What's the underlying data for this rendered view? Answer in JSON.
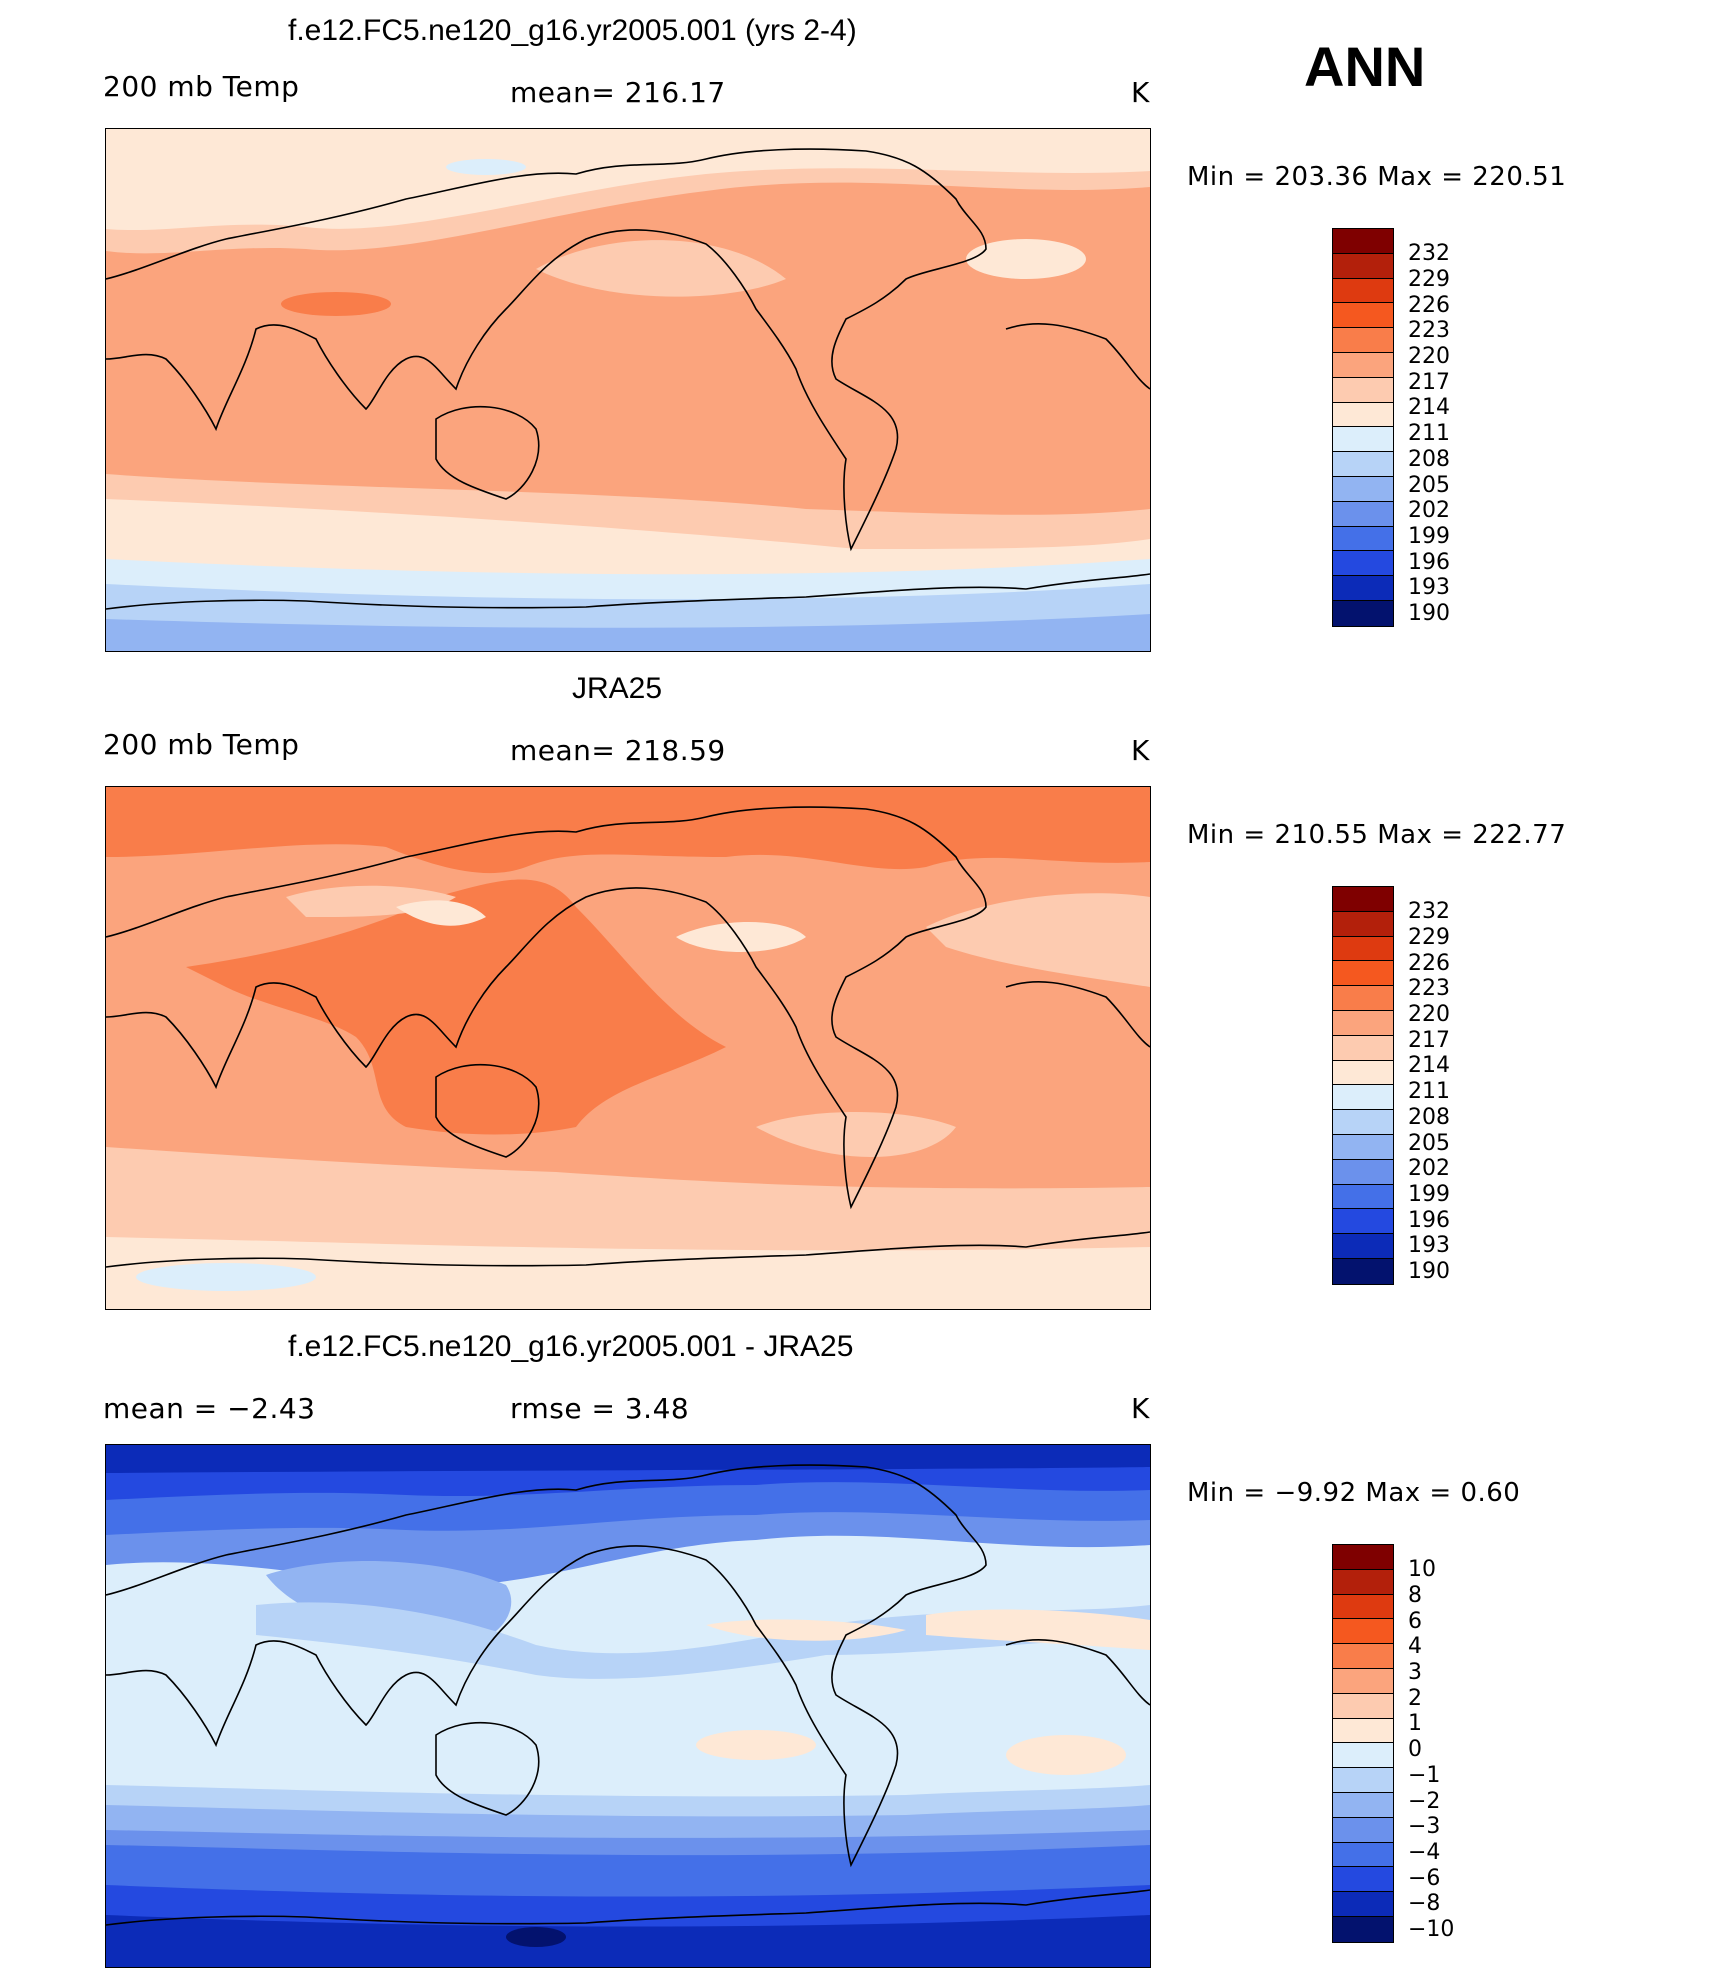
{
  "season": "ANN",
  "panels": [
    {
      "title": "f.e12.FC5.ne120_g16.yr2005.001 (yrs 2-4)",
      "left_label": "200 mb Temp",
      "center_label": "mean= 216.17",
      "units": "K",
      "minmax": "Min = 203.36 Max = 220.51"
    },
    {
      "title": "JRA25",
      "left_label": "200 mb Temp",
      "center_label": "mean= 218.59",
      "units": "K",
      "minmax": "Min = 210.55 Max = 222.77"
    },
    {
      "title": "f.e12.FC5.ne120_g16.yr2005.001 - JRA25",
      "left_label": "mean =   −2.43",
      "center_label": "rmse =    3.48",
      "units": "K",
      "minmax": "Min =  −9.92 Max =    0.60"
    }
  ],
  "colorbars": {
    "abs": {
      "labels": [
        "232",
        "229",
        "226",
        "223",
        "220",
        "217",
        "214",
        "211",
        "208",
        "205",
        "202",
        "199",
        "196",
        "193",
        "190"
      ],
      "colors": [
        "#7f0000",
        "#b3200b",
        "#de3a10",
        "#f5581f",
        "#f97d4a",
        "#fba47d",
        "#fdcbb0",
        "#fee8d6",
        "#dceefb",
        "#b7d3f7",
        "#92b4f2",
        "#6b91ec",
        "#4470e8",
        "#2449e0",
        "#0c2bb8",
        "#03126e"
      ]
    },
    "diff": {
      "labels": [
        "10",
        "8",
        "6",
        "4",
        "3",
        "2",
        "1",
        "0",
        "−1",
        "−2",
        "−3",
        "−4",
        "−6",
        "−8",
        "−10"
      ],
      "colors": [
        "#7f0000",
        "#b3200b",
        "#de3a10",
        "#f5581f",
        "#f97d4a",
        "#fba47d",
        "#fdcbb0",
        "#fee8d6",
        "#dceefb",
        "#b7d3f7",
        "#92b4f2",
        "#6b91ec",
        "#4470e8",
        "#2449e0",
        "#0c2bb8",
        "#03126e"
      ]
    }
  }
}
